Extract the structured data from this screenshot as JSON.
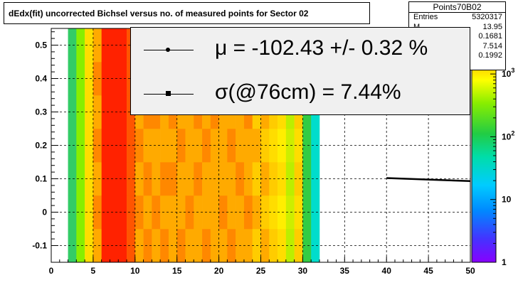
{
  "chart_data": {
    "type": "heatmap",
    "title": "dEdx(fit) uncorrected Bichsel versus no. of measured points for Sector 02",
    "xlabel": "",
    "ylabel": "",
    "xlim": [
      0,
      50
    ],
    "ylim": [
      -0.15,
      0.55
    ],
    "x_ticks": [
      "0",
      "5",
      "10",
      "15",
      "20",
      "25",
      "30",
      "35",
      "40",
      "45",
      "50"
    ],
    "y_ticks": [
      "-0.1",
      "0",
      "0.1",
      "0.2",
      "0.3",
      "0.4",
      "0.5"
    ],
    "x_tick_values": [
      0,
      5,
      10,
      15,
      20,
      25,
      30,
      35,
      40,
      45,
      50
    ],
    "y_tick_values": [
      -0.1,
      0,
      0.1,
      0.2,
      0.3,
      0.4,
      0.5
    ],
    "grid": true,
    "colorbar": {
      "scale": "log",
      "ticks": [
        "1",
        "10",
        "10^2",
        "10^3"
      ],
      "tick_values": [
        1,
        10,
        100,
        1000
      ]
    },
    "columns": [
      {
        "x0": 2,
        "x1": 3,
        "colors": [
          "#33cc66",
          "#33cc66",
          "#33cc66",
          "#33cc66",
          "#33cc66",
          "#33cc66",
          "#33cc66"
        ]
      },
      {
        "x0": 3,
        "x1": 4,
        "colors": [
          "#88ee00",
          "#88ee00",
          "#88ee00",
          "#88ee00",
          "#88ee00",
          "#88ee00",
          "#88ee00"
        ]
      },
      {
        "x0": 4,
        "x1": 5,
        "colors": [
          "#ffdd00",
          "#ffdd00",
          "#ffdd00",
          "#ffdd00",
          "#ffdd00",
          "#ffdd00",
          "#ffdd00"
        ]
      },
      {
        "x0": 5,
        "x1": 6,
        "colors": [
          "#ffaa00",
          "#ff8800",
          "#ffaa00",
          "#ff8800",
          "#ffaa00",
          "#ff8800",
          "#ffaa00"
        ]
      },
      {
        "x0": 6,
        "x1": 9,
        "colors": [
          "#ff2200",
          "#ff2200",
          "#ff2200",
          "#ff2200",
          "#ff2200",
          "#ff2200",
          "#ff2200"
        ]
      },
      {
        "x0": 9,
        "x1": 10,
        "colors": [
          "#ff5500",
          "#ff5500",
          "#ff5500",
          "#ff5500",
          "#ff5500",
          "#ff5500",
          "#ff5500"
        ]
      },
      {
        "x0": 10,
        "x1": 11,
        "colors": [
          "#ffaa00",
          "#ff8800",
          "#ffaa00",
          "#ff8800",
          "#ffaa00",
          "#ff8800",
          "#ffaa00"
        ]
      },
      {
        "x0": 11,
        "x1": 12,
        "colors": [
          "#ff8800",
          "#ffaa00",
          "#ff8800",
          "#ffaa00",
          "#ff8800",
          "#ffaa00",
          "#ff8800"
        ]
      },
      {
        "x0": 12,
        "x1": 13,
        "colors": [
          "#ffaa00",
          "#ff8800",
          "#ffaa00",
          "#ffaa00",
          "#ff8800",
          "#ffaa00",
          "#ffaa00"
        ]
      },
      {
        "x0": 13,
        "x1": 14,
        "colors": [
          "#ff8800",
          "#ffaa00",
          "#ff8800",
          "#ffaa00",
          "#ffaa00",
          "#ff8800",
          "#ffaa00"
        ]
      },
      {
        "x0": 14,
        "x1": 15,
        "colors": [
          "#ffaa00",
          "#ffaa00",
          "#ff8800",
          "#ffaa00",
          "#ff8800",
          "#ffaa00",
          "#ff8800"
        ]
      },
      {
        "x0": 15,
        "x1": 16,
        "colors": [
          "#ff8800",
          "#ffaa00",
          "#ffaa00",
          "#ff8800",
          "#ffaa00",
          "#ffaa00",
          "#ffaa00"
        ]
      },
      {
        "x0": 16,
        "x1": 17,
        "colors": [
          "#ffaa00",
          "#ff8800",
          "#ffaa00",
          "#ffaa00",
          "#ffaa00",
          "#ff8800",
          "#ffaa00"
        ]
      },
      {
        "x0": 17,
        "x1": 18,
        "colors": [
          "#ffaa00",
          "#ffaa00",
          "#ff8800",
          "#ffaa00",
          "#ff8800",
          "#ffaa00",
          "#ffaa00"
        ]
      },
      {
        "x0": 18,
        "x1": 19,
        "colors": [
          "#ff8800",
          "#ffaa00",
          "#ffaa00",
          "#ff8800",
          "#ffaa00",
          "#ffaa00",
          "#ff8800"
        ]
      },
      {
        "x0": 19,
        "x1": 20,
        "colors": [
          "#ffaa00",
          "#ffaa00",
          "#ffaa00",
          "#ffaa00",
          "#ff8800",
          "#ffaa00",
          "#ffaa00"
        ]
      },
      {
        "x0": 20,
        "x1": 21,
        "colors": [
          "#ffaa00",
          "#ff8800",
          "#ffaa00",
          "#ffaa00",
          "#ffaa00",
          "#ff8800",
          "#ffaa00"
        ]
      },
      {
        "x0": 21,
        "x1": 22,
        "colors": [
          "#ff8800",
          "#ffaa00",
          "#ffaa00",
          "#ff8800",
          "#ffaa00",
          "#ffaa00",
          "#ffaa00"
        ]
      },
      {
        "x0": 22,
        "x1": 23,
        "colors": [
          "#ffaa00",
          "#ffaa00",
          "#ff8800",
          "#ffaa00",
          "#ffaa00",
          "#ffaa00",
          "#ff8800"
        ]
      },
      {
        "x0": 23,
        "x1": 24,
        "colors": [
          "#ffaa00",
          "#ff8800",
          "#ffaa00",
          "#ffaa00",
          "#ff8800",
          "#ffaa00",
          "#ffaa00"
        ]
      },
      {
        "x0": 24,
        "x1": 25,
        "colors": [
          "#ffcc00",
          "#ffaa00",
          "#ffcc00",
          "#ffaa00",
          "#ffcc00",
          "#ffaa00",
          "#ffcc00"
        ]
      },
      {
        "x0": 25,
        "x1": 26,
        "colors": [
          "#ffaa00",
          "#ffcc00",
          "#ffaa00",
          "#ffcc00",
          "#ffaa00",
          "#ffcc00",
          "#ffaa00"
        ]
      },
      {
        "x0": 26,
        "x1": 27,
        "colors": [
          "#ffcc00",
          "#ffdd00",
          "#ffcc00",
          "#ffdd00",
          "#ffcc00",
          "#ffdd00",
          "#ffcc00"
        ]
      },
      {
        "x0": 27,
        "x1": 28,
        "colors": [
          "#ffdd00",
          "#ffee00",
          "#ffdd00",
          "#ffee00",
          "#ffdd00",
          "#ffee00",
          "#ffdd00"
        ]
      },
      {
        "x0": 28,
        "x1": 29,
        "colors": [
          "#bbee00",
          "#ccee00",
          "#bbee00",
          "#ccee00",
          "#bbee00",
          "#ccee00",
          "#bbee00"
        ]
      },
      {
        "x0": 29,
        "x1": 30,
        "colors": [
          "#ffcc00",
          "#ffdd00",
          "#ffcc00",
          "#ffdd00",
          "#ffcc00",
          "#ffdd00",
          "#ffcc00"
        ]
      },
      {
        "x0": 30,
        "x1": 31,
        "colors": [
          "#33cc44",
          "#33cc44",
          "#33cc44",
          "#33cc44",
          "#33cc44",
          "#33cc44",
          "#33cc44"
        ]
      },
      {
        "x0": 31,
        "x1": 32,
        "colors": [
          "#00ddcc",
          "#00ddcc",
          "#00ddcc",
          "#00ddcc",
          "#00ddcc",
          "#00ddcc",
          "#00ddcc"
        ]
      }
    ],
    "fit_line": {
      "x": [
        40,
        50
      ],
      "y": [
        0.102,
        0.093
      ]
    },
    "stats_box": {
      "name": "Points70B02",
      "rows": [
        {
          "label": "Entries",
          "value": "5320317"
        },
        {
          "label": "M",
          "value": "13.95"
        },
        {
          "label": "",
          "value": "0.1681"
        },
        {
          "label": "",
          "value": "7.514"
        },
        {
          "label": "",
          "value": "0.1992"
        }
      ]
    },
    "legend": [
      {
        "marker": "circle",
        "text": "μ  = -102.43 +/-  0.32 %"
      },
      {
        "marker": "square",
        "text": "σ(@76cm) =  7.44%"
      }
    ]
  }
}
